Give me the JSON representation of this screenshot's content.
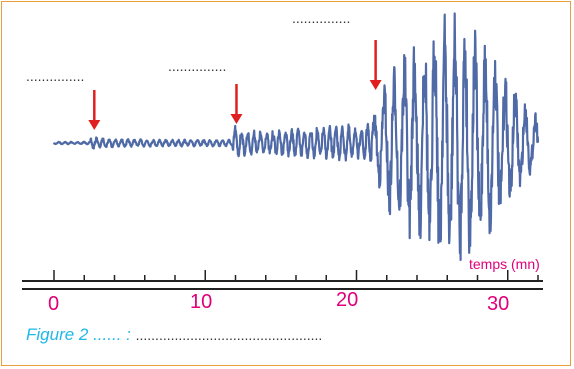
{
  "figure": {
    "caption": "Figure 2  ...... :",
    "caption_blank": "................................................",
    "blank_labels": [
      "...............",
      "...............",
      "..............."
    ],
    "axis_unit": "temps (mn)",
    "tick_labels": [
      "0",
      "10",
      "20",
      "30"
    ],
    "time_range_mn": [
      0,
      32
    ],
    "arrivals_mn": [
      2.4,
      11.8,
      21.0
    ],
    "colors": {
      "frame": "#e8a03c",
      "trace": "#4f6aa6",
      "arrow": "#e02020",
      "tick_label": "#e0007a",
      "caption": "#20b8e6",
      "axis": "#222222"
    }
  }
}
